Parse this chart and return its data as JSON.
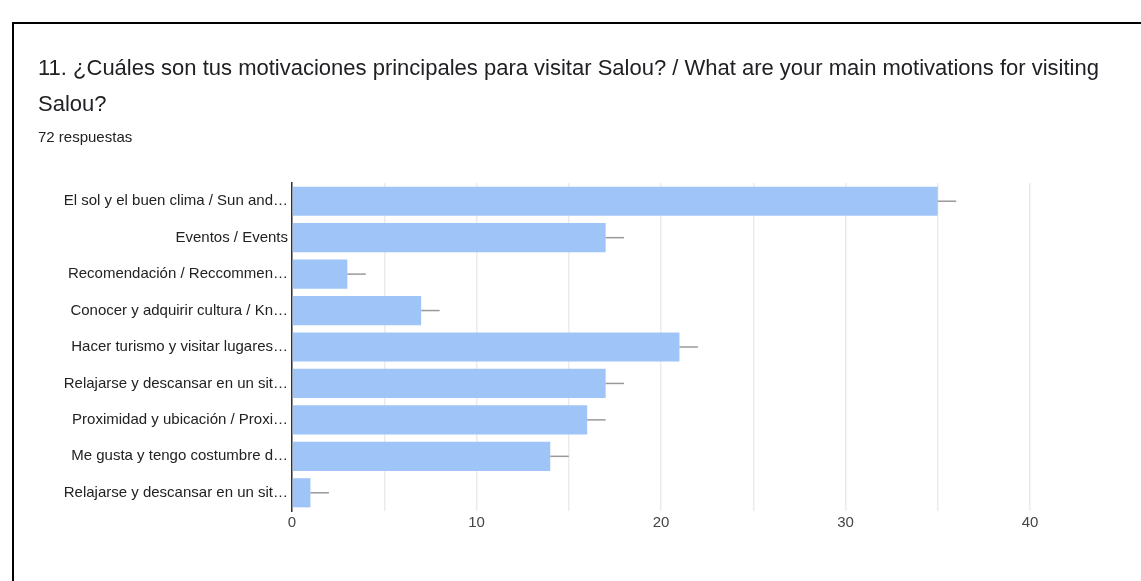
{
  "chart_data": {
    "type": "bar",
    "orientation": "horizontal",
    "title": "11. ¿Cuáles son tus motivaciones principales para visitar Salou? / What are your main motivations for visiting Salou?",
    "subtitle": "72 respuestas",
    "categories": [
      "El sol y el buen clima / Sun and…",
      "Eventos / Events",
      "Recomendación / Reccommen…",
      "Conocer y adquirir cultura / Kn…",
      "Hacer turismo y visitar lugares…",
      "Relajarse y descansar en un sit…",
      "Proximidad y ubicación / Proxi…",
      "Me gusta y tengo costumbre d…",
      "Relajarse y descansar en un sit…"
    ],
    "values": [
      35,
      17,
      3,
      7,
      21,
      17,
      16,
      14,
      1
    ],
    "errors": [
      [
        35,
        36
      ],
      [
        17,
        18
      ],
      [
        3,
        4
      ],
      [
        7,
        8
      ],
      [
        21,
        22
      ],
      [
        17,
        18
      ],
      [
        16,
        17
      ],
      [
        14,
        15
      ],
      [
        1,
        2
      ]
    ],
    "color": "#9fc5f8",
    "xlim": [
      0,
      40
    ],
    "xticks": [
      0,
      {
        "value": 5,
        "label": null
      },
      10,
      {
        "value": 15,
        "label": null
      },
      20,
      {
        "value": 25,
        "label": null
      },
      30,
      {
        "value": 35,
        "label": null
      },
      40
    ],
    "grid": "x",
    "legend": false
  }
}
